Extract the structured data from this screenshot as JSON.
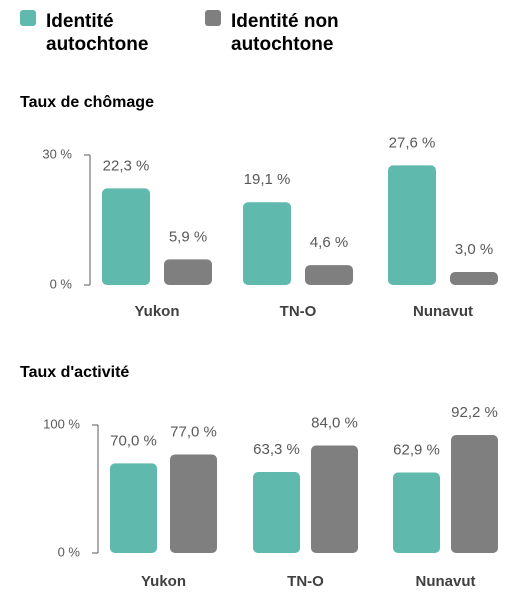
{
  "chart_data": [
    {
      "type": "bar",
      "title": "Taux de chômage",
      "categories": [
        "Yukon",
        "TN-O",
        "Nunavut"
      ],
      "series": [
        {
          "name": "Identité autochtone",
          "color": "#5fb9ac",
          "values": [
            22.3,
            19.1,
            27.6
          ],
          "value_labels": [
            "22,3 %",
            "19,1 %",
            "27,6 %"
          ]
        },
        {
          "name": "Identité non autochtone",
          "color": "#7f7f7f",
          "values": [
            5.9,
            4.6,
            3.0
          ],
          "value_labels": [
            "5,9 %",
            "4,6 %",
            "3,0 %"
          ]
        }
      ],
      "ylim": [
        0,
        30
      ],
      "yticks": [
        {
          "value": 0,
          "label": "0 %"
        },
        {
          "value": 30,
          "label": "30 %"
        }
      ]
    },
    {
      "type": "bar",
      "title": "Taux d'activité",
      "categories": [
        "Yukon",
        "TN-O",
        "Nunavut"
      ],
      "series": [
        {
          "color": "#5fb9ac",
          "values": [
            70.0,
            63.3,
            62.9
          ],
          "value_labels": [
            "70,0 %",
            "63,3 %",
            "62,9 %"
          ]
        },
        {
          "color": "#7f7f7f",
          "values": [
            77.0,
            84.0,
            92.2
          ],
          "value_labels": [
            "77,0 %",
            "84,0 %",
            "92,2 %"
          ]
        }
      ],
      "ylim": [
        0,
        100
      ],
      "yticks": [
        {
          "value": 0,
          "label": "0 %"
        },
        {
          "value": 100,
          "label": "100 %"
        }
      ]
    }
  ]
}
